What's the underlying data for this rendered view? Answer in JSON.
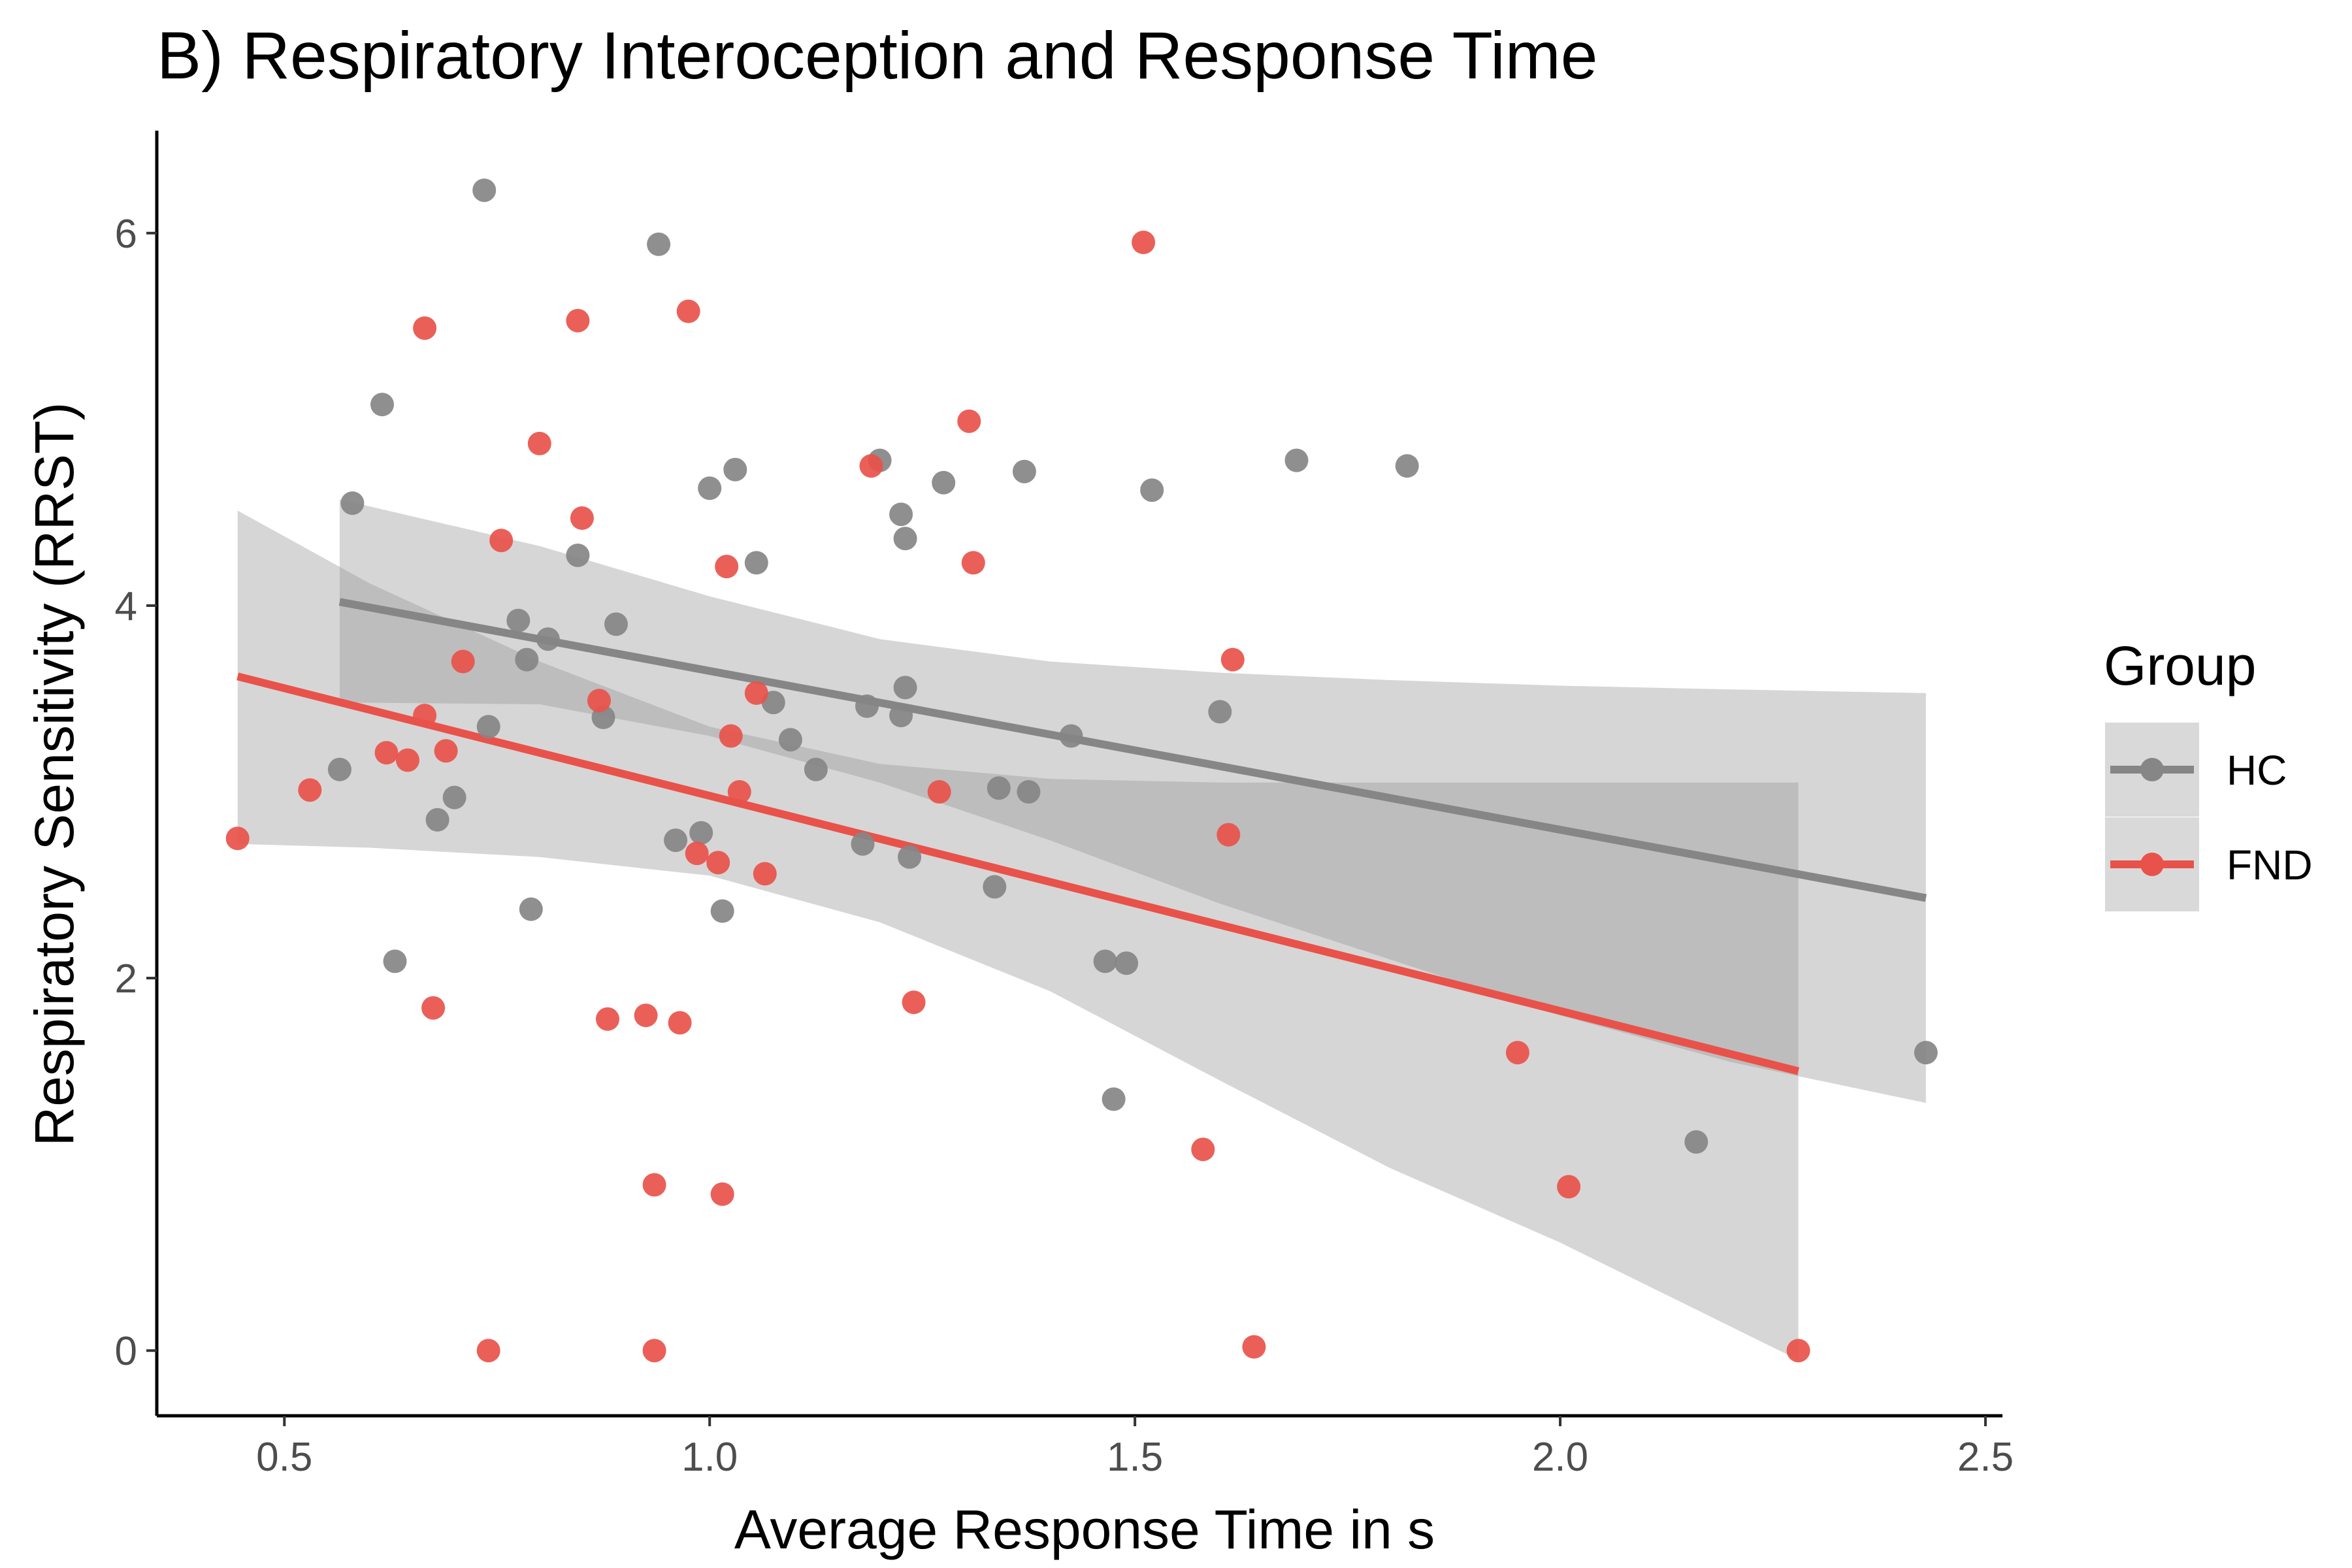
{
  "chart_data": {
    "type": "scatter",
    "title": "B) Respiratory Interoception and Response Time",
    "xlabel": "Average Response Time in s",
    "ylabel": "Respiratory Sensitivity (RRST)",
    "xlim": [
      0.35,
      2.52
    ],
    "ylim": [
      -0.35,
      6.55
    ],
    "xticks": [
      0.5,
      1.0,
      1.5,
      2.0,
      2.5
    ],
    "xtick_labels": [
      "0.5",
      "1.0",
      "1.5",
      "2.0",
      "2.5"
    ],
    "yticks": [
      0,
      2,
      4,
      6
    ],
    "ytick_labels": [
      "0",
      "2",
      "4",
      "6"
    ],
    "grid": false,
    "legend": {
      "title": "Group",
      "position": "right"
    },
    "series": [
      {
        "name": "HC",
        "color": "#868686",
        "points": [
          [
            0.565,
            3.12
          ],
          [
            0.58,
            4.55
          ],
          [
            0.615,
            5.08
          ],
          [
            0.63,
            2.09
          ],
          [
            0.68,
            2.85
          ],
          [
            0.7,
            2.97
          ],
          [
            0.735,
            6.23
          ],
          [
            0.74,
            3.35
          ],
          [
            0.775,
            3.92
          ],
          [
            0.785,
            3.71
          ],
          [
            0.79,
            2.37
          ],
          [
            0.81,
            3.82
          ],
          [
            0.845,
            4.27
          ],
          [
            0.875,
            3.4
          ],
          [
            0.89,
            3.9
          ],
          [
            0.94,
            5.94
          ],
          [
            0.96,
            2.74
          ],
          [
            0.99,
            2.78
          ],
          [
            1.0,
            4.63
          ],
          [
            1.015,
            2.36
          ],
          [
            1.03,
            4.73
          ],
          [
            1.055,
            4.23
          ],
          [
            1.075,
            3.48
          ],
          [
            1.095,
            3.28
          ],
          [
            1.125,
            3.12
          ],
          [
            1.18,
            2.72
          ],
          [
            1.185,
            3.46
          ],
          [
            1.2,
            4.78
          ],
          [
            1.225,
            4.49
          ],
          [
            1.225,
            3.41
          ],
          [
            1.23,
            4.36
          ],
          [
            1.23,
            3.56
          ],
          [
            1.235,
            2.65
          ],
          [
            1.275,
            4.66
          ],
          [
            1.335,
            2.49
          ],
          [
            1.34,
            3.02
          ],
          [
            1.37,
            4.72
          ],
          [
            1.375,
            3.0
          ],
          [
            1.425,
            3.3
          ],
          [
            1.465,
            2.09
          ],
          [
            1.475,
            1.35
          ],
          [
            1.49,
            2.08
          ],
          [
            1.52,
            4.62
          ],
          [
            1.6,
            3.43
          ],
          [
            1.69,
            4.78
          ],
          [
            1.82,
            4.75
          ],
          [
            2.16,
            1.12
          ],
          [
            2.43,
            1.6
          ]
        ],
        "fit": {
          "x": [
            0.565,
            2.43
          ],
          "y": [
            4.02,
            2.43
          ]
        },
        "ci": {
          "x": [
            0.565,
            0.8,
            1.0,
            1.2,
            1.4,
            1.6,
            1.8,
            2.0,
            2.2,
            2.43
          ],
          "upper": [
            4.57,
            4.32,
            4.05,
            3.82,
            3.7,
            3.64,
            3.6,
            3.57,
            3.55,
            3.53
          ],
          "lower": [
            3.48,
            3.47,
            3.3,
            3.05,
            2.74,
            2.4,
            2.1,
            1.8,
            1.55,
            1.33
          ]
        }
      },
      {
        "name": "FND",
        "color": "#e8524a",
        "points": [
          [
            0.445,
            2.75
          ],
          [
            0.53,
            3.01
          ],
          [
            0.62,
            3.21
          ],
          [
            0.645,
            3.17
          ],
          [
            0.665,
            3.41
          ],
          [
            0.665,
            5.49
          ],
          [
            0.675,
            1.84
          ],
          [
            0.69,
            3.22
          ],
          [
            0.71,
            3.7
          ],
          [
            0.74,
            0.0
          ],
          [
            0.755,
            4.35
          ],
          [
            0.8,
            4.87
          ],
          [
            0.845,
            5.53
          ],
          [
            0.85,
            4.47
          ],
          [
            0.87,
            3.49
          ],
          [
            0.88,
            1.78
          ],
          [
            0.925,
            1.8
          ],
          [
            0.935,
            0.89
          ],
          [
            0.935,
            0.0
          ],
          [
            0.965,
            1.76
          ],
          [
            0.975,
            5.58
          ],
          [
            0.985,
            2.67
          ],
          [
            1.01,
            2.62
          ],
          [
            1.015,
            0.84
          ],
          [
            1.02,
            4.21
          ],
          [
            1.025,
            3.3
          ],
          [
            1.035,
            3.0
          ],
          [
            1.055,
            3.53
          ],
          [
            1.065,
            2.56
          ],
          [
            1.19,
            4.75
          ],
          [
            1.24,
            1.87
          ],
          [
            1.27,
            3.0
          ],
          [
            1.305,
            4.99
          ],
          [
            1.31,
            4.23
          ],
          [
            1.51,
            5.95
          ],
          [
            1.58,
            1.08
          ],
          [
            1.61,
            2.77
          ],
          [
            1.615,
            3.71
          ],
          [
            1.64,
            0.02
          ],
          [
            1.95,
            1.6
          ],
          [
            2.01,
            0.88
          ],
          [
            2.28,
            0.0
          ]
        ],
        "fit": {
          "x": [
            0.445,
            2.28
          ],
          "y": [
            3.62,
            1.5
          ]
        },
        "ci": {
          "x": [
            0.445,
            0.6,
            0.8,
            1.0,
            1.2,
            1.4,
            1.6,
            1.8,
            2.0,
            2.28
          ],
          "upper": [
            4.51,
            4.12,
            3.7,
            3.35,
            3.15,
            3.07,
            3.05,
            3.05,
            3.05,
            3.05
          ],
          "lower": [
            2.72,
            2.7,
            2.65,
            2.55,
            2.3,
            1.93,
            1.45,
            0.98,
            0.58,
            -0.05
          ]
        }
      }
    ]
  }
}
